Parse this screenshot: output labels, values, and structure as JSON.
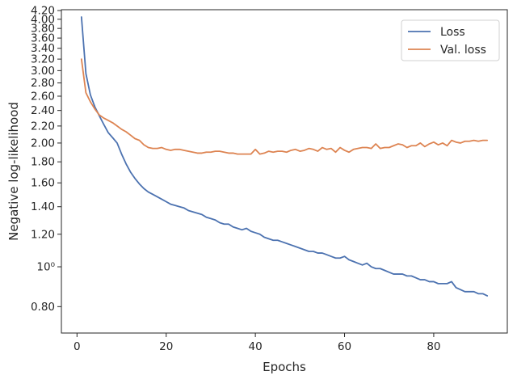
{
  "chart_data": {
    "type": "line",
    "title": "",
    "xlabel": "Epochs",
    "ylabel": "Negative log-likelihood",
    "yscale": "log",
    "xlim": [
      -3.5,
      96.5
    ],
    "ylim": [
      0.69,
      4.22
    ],
    "grid": false,
    "legend_position": "top-right",
    "x_ticks": [
      {
        "value": 0,
        "label": "0"
      },
      {
        "value": 20,
        "label": "20"
      },
      {
        "value": 40,
        "label": "40"
      },
      {
        "value": 60,
        "label": "60"
      },
      {
        "value": 80,
        "label": "80"
      }
    ],
    "y_ticks": [
      {
        "value": 0.8,
        "label": "0.80"
      },
      {
        "value": 1.0,
        "label": "10⁰"
      },
      {
        "value": 1.2,
        "label": "1.20"
      },
      {
        "value": 1.4,
        "label": "1.40"
      },
      {
        "value": 1.6,
        "label": "1.60"
      },
      {
        "value": 1.8,
        "label": "1.80"
      },
      {
        "value": 2.0,
        "label": "2.00"
      },
      {
        "value": 2.2,
        "label": "2.20"
      },
      {
        "value": 2.4,
        "label": "2.40"
      },
      {
        "value": 2.6,
        "label": "2.60"
      },
      {
        "value": 2.8,
        "label": "2.80"
      },
      {
        "value": 3.0,
        "label": "3.00"
      },
      {
        "value": 3.2,
        "label": "3.20"
      },
      {
        "value": 3.4,
        "label": "3.40"
      },
      {
        "value": 3.6,
        "label": "3.60"
      },
      {
        "value": 3.8,
        "label": "3.80"
      },
      {
        "value": 4.0,
        "label": "4.00"
      },
      {
        "value": 4.2,
        "label": "4.20"
      }
    ],
    "series": [
      {
        "name": "Loss",
        "color": "#4c72b0",
        "x": [
          1,
          2,
          3,
          4,
          5,
          6,
          7,
          8,
          9,
          10,
          11,
          12,
          13,
          14,
          15,
          16,
          17,
          18,
          19,
          20,
          21,
          22,
          23,
          24,
          25,
          26,
          27,
          28,
          29,
          30,
          31,
          32,
          33,
          34,
          35,
          36,
          37,
          38,
          39,
          40,
          41,
          42,
          43,
          44,
          45,
          46,
          47,
          48,
          49,
          50,
          51,
          52,
          53,
          54,
          55,
          56,
          57,
          58,
          59,
          60,
          61,
          62,
          63,
          64,
          65,
          66,
          67,
          68,
          69,
          70,
          71,
          72,
          73,
          74,
          75,
          76,
          77,
          78,
          79,
          80,
          81,
          82,
          83,
          84,
          85,
          86,
          87,
          88,
          89,
          90,
          91,
          92
        ],
        "values": [
          4.05,
          2.95,
          2.62,
          2.45,
          2.33,
          2.22,
          2.12,
          2.06,
          2.0,
          1.88,
          1.78,
          1.7,
          1.64,
          1.59,
          1.55,
          1.52,
          1.5,
          1.48,
          1.46,
          1.44,
          1.42,
          1.41,
          1.4,
          1.39,
          1.37,
          1.36,
          1.35,
          1.34,
          1.32,
          1.31,
          1.3,
          1.28,
          1.27,
          1.27,
          1.25,
          1.24,
          1.23,
          1.24,
          1.22,
          1.21,
          1.2,
          1.18,
          1.17,
          1.16,
          1.16,
          1.15,
          1.14,
          1.13,
          1.12,
          1.11,
          1.1,
          1.09,
          1.09,
          1.08,
          1.08,
          1.07,
          1.06,
          1.05,
          1.05,
          1.06,
          1.04,
          1.03,
          1.02,
          1.01,
          1.02,
          1.0,
          0.99,
          0.99,
          0.98,
          0.97,
          0.96,
          0.96,
          0.96,
          0.95,
          0.95,
          0.94,
          0.93,
          0.93,
          0.92,
          0.92,
          0.91,
          0.91,
          0.91,
          0.92,
          0.89,
          0.88,
          0.87,
          0.87,
          0.87,
          0.86,
          0.86,
          0.85
        ]
      },
      {
        "name": "Val. loss",
        "color": "#dd8452",
        "x": [
          1,
          2,
          3,
          4,
          5,
          6,
          7,
          8,
          9,
          10,
          11,
          12,
          13,
          14,
          15,
          16,
          17,
          18,
          19,
          20,
          21,
          22,
          23,
          24,
          25,
          26,
          27,
          28,
          29,
          30,
          31,
          32,
          33,
          34,
          35,
          36,
          37,
          38,
          39,
          40,
          41,
          42,
          43,
          44,
          45,
          46,
          47,
          48,
          49,
          50,
          51,
          52,
          53,
          54,
          55,
          56,
          57,
          58,
          59,
          60,
          61,
          62,
          63,
          64,
          65,
          66,
          67,
          68,
          69,
          70,
          71,
          72,
          73,
          74,
          75,
          76,
          77,
          78,
          79,
          80,
          81,
          82,
          83,
          84,
          85,
          86,
          87,
          88,
          89,
          90,
          91,
          92
        ],
        "values": [
          3.2,
          2.65,
          2.52,
          2.42,
          2.34,
          2.3,
          2.27,
          2.24,
          2.2,
          2.16,
          2.13,
          2.09,
          2.05,
          2.03,
          1.98,
          1.95,
          1.94,
          1.94,
          1.95,
          1.93,
          1.92,
          1.93,
          1.93,
          1.92,
          1.91,
          1.9,
          1.89,
          1.89,
          1.9,
          1.9,
          1.91,
          1.91,
          1.9,
          1.89,
          1.89,
          1.88,
          1.88,
          1.88,
          1.88,
          1.93,
          1.88,
          1.89,
          1.91,
          1.9,
          1.91,
          1.91,
          1.9,
          1.92,
          1.93,
          1.91,
          1.92,
          1.94,
          1.93,
          1.91,
          1.95,
          1.93,
          1.94,
          1.9,
          1.95,
          1.92,
          1.9,
          1.93,
          1.94,
          1.95,
          1.95,
          1.94,
          1.99,
          1.94,
          1.95,
          1.95,
          1.97,
          1.99,
          1.98,
          1.95,
          1.97,
          1.97,
          2.0,
          1.96,
          1.99,
          2.01,
          1.98,
          2.0,
          1.97,
          2.03,
          2.01,
          2.0,
          2.02,
          2.02,
          2.03,
          2.02,
          2.03,
          2.03
        ]
      }
    ]
  }
}
